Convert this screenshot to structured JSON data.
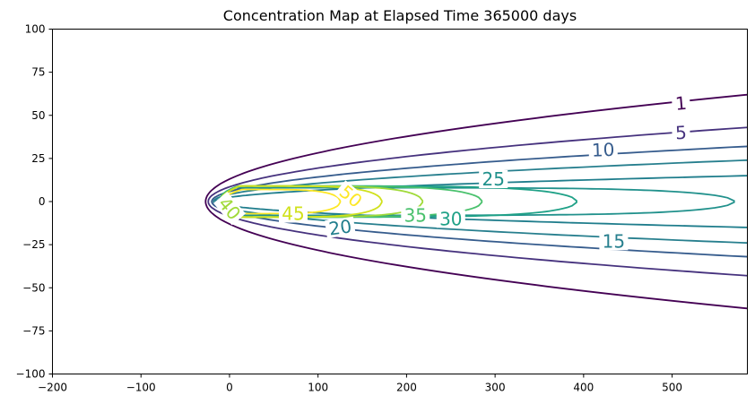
{
  "chart_data": {
    "type": "contour",
    "title": "Concentration Map at Elapsed Time 365000 days",
    "xlabel": "",
    "ylabel": "",
    "xlim": [
      -200,
      585
    ],
    "ylim": [
      -100,
      100
    ],
    "x_ticks": [
      -200,
      -100,
      0,
      100,
      200,
      300,
      400,
      500
    ],
    "y_ticks": [
      -100,
      -75,
      -50,
      -25,
      0,
      25,
      50,
      75,
      100
    ],
    "grid": false,
    "levels": [
      {
        "level": 1,
        "color": "#440154",
        "x0": -27,
        "half_width_at_end": 62,
        "tip_x": null,
        "label": "1"
      },
      {
        "level": 5,
        "color": "#46327e",
        "x0": -24,
        "half_width_at_end": 43,
        "tip_x": null,
        "label": "5"
      },
      {
        "level": 10,
        "color": "#365c8d",
        "x0": -20,
        "half_width_at_end": 32,
        "tip_x": null,
        "label": "10"
      },
      {
        "level": 15,
        "color": "#277f8e",
        "x0": -18,
        "half_width_at_end": 24,
        "tip_x": null,
        "label": "15"
      },
      {
        "level": 20,
        "color": "#1f7d8c",
        "x0": -16,
        "half_width_at_end": 15,
        "tip_x": null,
        "label": "20"
      },
      {
        "level": 25,
        "color": "#21918c",
        "x0": -14,
        "half_width_at_end": 8,
        "tip_x": 570,
        "label": "25"
      },
      {
        "level": 30,
        "color": "#1fa187",
        "x0": -13,
        "half_width_at_end": 9,
        "tip_x": 392,
        "label": "30"
      },
      {
        "level": 35,
        "color": "#4ac16d",
        "x0": -12,
        "half_width_at_end": 9,
        "tip_x": 285,
        "label": "35"
      },
      {
        "level": 40,
        "color": "#a0da39",
        "x0": -11,
        "half_width_at_end": 9,
        "tip_x": 218,
        "label": "40"
      },
      {
        "level": 45,
        "color": "#d0e11c",
        "x0": -10,
        "half_width_at_end": 9,
        "tip_x": 172,
        "label": "45"
      },
      {
        "level": 50,
        "color": "#fde725",
        "x0": -8,
        "half_width_at_end": 7,
        "tip_x": 125,
        "label": "50"
      }
    ],
    "contour_labels": [
      {
        "text": "1",
        "x": 510,
        "y": 57,
        "rotation": -5,
        "color": "#440154"
      },
      {
        "text": "5",
        "x": 510,
        "y": 40,
        "rotation": -3,
        "color": "#46327e"
      },
      {
        "text": "10",
        "x": 422,
        "y": 30,
        "rotation": -2,
        "color": "#365c8d"
      },
      {
        "text": "15",
        "x": 434,
        "y": -23,
        "rotation": 0,
        "color": "#277f8e"
      },
      {
        "text": "20",
        "x": 125,
        "y": -15,
        "rotation": -8,
        "color": "#1f7d8c"
      },
      {
        "text": "25",
        "x": 298,
        "y": 13,
        "rotation": 0,
        "color": "#21918c"
      },
      {
        "text": "30",
        "x": 250,
        "y": -10,
        "rotation": 0,
        "color": "#1fa187"
      },
      {
        "text": "35",
        "x": 210,
        "y": -8,
        "rotation": 0,
        "color": "#4ac16d"
      },
      {
        "text": "40",
        "x": 0,
        "y": -4,
        "rotation": 50,
        "color": "#a0da39"
      },
      {
        "text": "45",
        "x": 72,
        "y": -7,
        "rotation": 0,
        "color": "#d0e11c"
      },
      {
        "text": "50",
        "x": 137,
        "y": 3,
        "rotation": 40,
        "color": "#fde725"
      }
    ]
  }
}
